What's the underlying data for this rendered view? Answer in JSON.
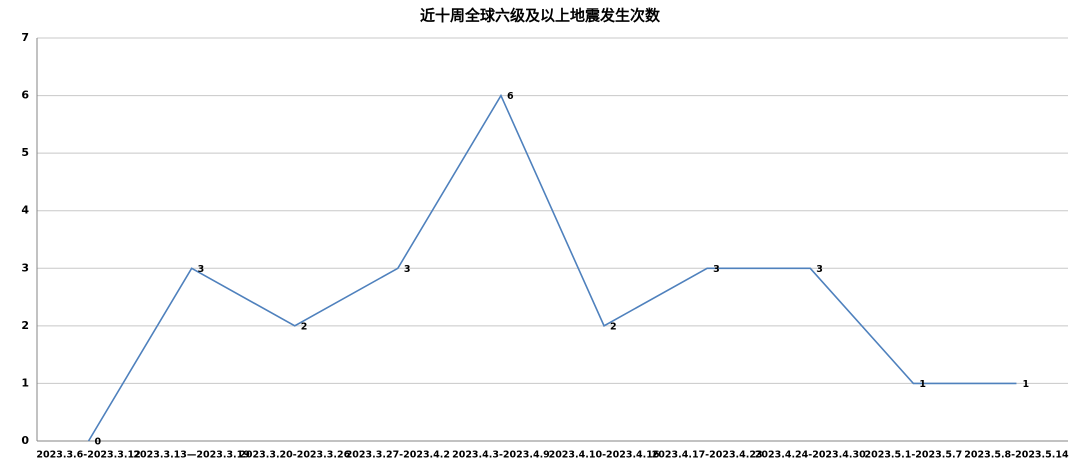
{
  "chart_data": {
    "type": "line",
    "title": "近十周全球六级及以上地震发生次数",
    "categories": [
      "2023.3.6-2023.3.12",
      "2023.3.13—2023.3.19",
      "2023.3.20-2023.3.26",
      "2023.3.27-2023.4.2",
      "2023.4.3-2023.4.9",
      "2023.4.10-2023.4.16",
      "2023.4.17-2023.4.23",
      "2023.4.24-2023.4.30",
      "2023.5.1-2023.5.7",
      "2023.5.8-2023.5.14"
    ],
    "values": [
      0,
      3,
      2,
      3,
      6,
      2,
      3,
      3,
      1,
      1
    ],
    "color": "#4f81bd",
    "ylim": [
      0,
      7
    ],
    "yticks": [
      0,
      1,
      2,
      3,
      4,
      5,
      6,
      7
    ],
    "grid": true
  }
}
